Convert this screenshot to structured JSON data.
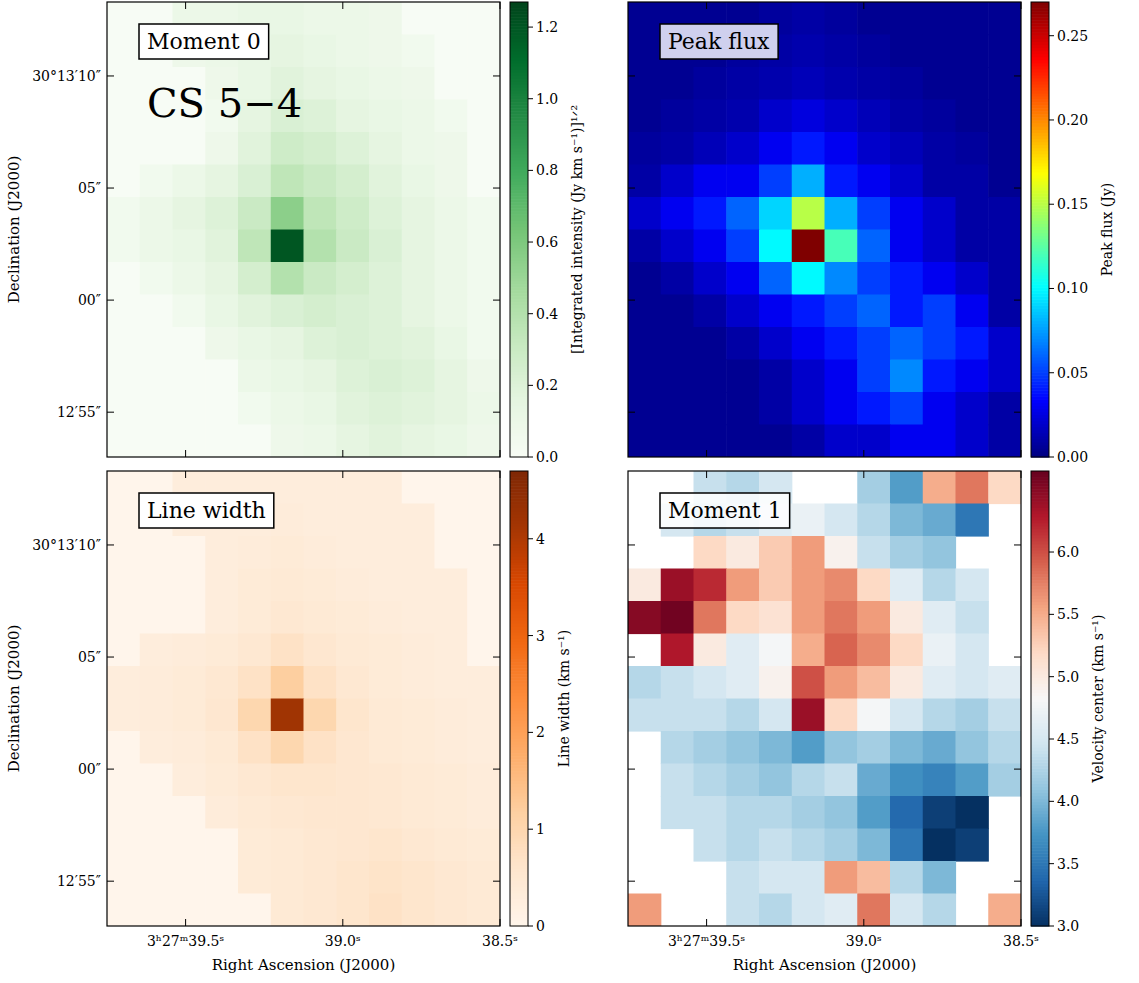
{
  "chart_data": [
    {
      "type": "heatmap",
      "title": "Moment 0",
      "annotation": "CS 5−4",
      "color": "greens",
      "ylabel": "Declination (J2000)",
      "tick_labels": "y",
      "xlim": [
        39.75,
        38.5
      ],
      "ylim": [
        -7.0,
        13.3
      ],
      "xticks": [
        39.5,
        39.0,
        38.5
      ],
      "yticks": [
        {
          "value": 10,
          "label": "30°13′10″"
        },
        {
          "value": 5,
          "label": "05″"
        },
        {
          "value": 0,
          "label": "00″"
        },
        {
          "value": -5,
          "label": "12′55″"
        }
      ],
      "colorbar_label": "[Integrated intensity (Jy km s⁻¹)]¹ᐟ²",
      "colorbar_range": [
        0,
        1.27
      ],
      "colorbar_ticks": [
        {
          "value": 0,
          "label": "0.0"
        },
        {
          "value": 0.2,
          "label": "0.2"
        },
        {
          "value": 0.4,
          "label": "0.4"
        },
        {
          "value": 0.6,
          "label": "0.6"
        },
        {
          "value": 0.8,
          "label": "0.8"
        },
        {
          "value": 1.0,
          "label": "1.0"
        },
        {
          "value": 1.2,
          "label": "1.2"
        }
      ],
      "cells": [
        [
          0,
          0,
          0.1,
          0.1,
          0.12,
          0.12,
          0.1,
          0.1,
          0.08,
          0,
          0,
          0
        ],
        [
          0,
          0,
          0.08,
          0.1,
          0.12,
          0.15,
          0.12,
          0.1,
          0.08,
          0.05,
          0,
          0
        ],
        [
          0,
          0,
          0,
          0.08,
          0.12,
          0.18,
          0.15,
          0.12,
          0.1,
          0.08,
          0,
          0
        ],
        [
          0,
          0,
          0,
          0.05,
          0.15,
          0.22,
          0.2,
          0.15,
          0.12,
          0.1,
          0.05,
          0
        ],
        [
          0,
          0,
          0,
          0.08,
          0.18,
          0.28,
          0.25,
          0.2,
          0.15,
          0.1,
          0.08,
          0
        ],
        [
          0,
          0.05,
          0.1,
          0.15,
          0.22,
          0.35,
          0.3,
          0.25,
          0.18,
          0.12,
          0.08,
          0
        ],
        [
          0.05,
          0.1,
          0.15,
          0.2,
          0.3,
          0.55,
          0.35,
          0.28,
          0.2,
          0.15,
          0.1,
          0.05
        ],
        [
          0.05,
          0.1,
          0.12,
          0.18,
          0.35,
          1.2,
          0.4,
          0.3,
          0.22,
          0.15,
          0.1,
          0.05
        ],
        [
          0,
          0.05,
          0.1,
          0.15,
          0.25,
          0.4,
          0.3,
          0.25,
          0.2,
          0.15,
          0.1,
          0.05
        ],
        [
          0,
          0,
          0.05,
          0.12,
          0.18,
          0.22,
          0.25,
          0.22,
          0.2,
          0.15,
          0.1,
          0.05
        ],
        [
          0,
          0,
          0,
          0.08,
          0.12,
          0.15,
          0.2,
          0.22,
          0.2,
          0.18,
          0.12,
          0.05
        ],
        [
          0,
          0,
          0,
          0,
          0.1,
          0.12,
          0.15,
          0.2,
          0.22,
          0.2,
          0.15,
          0.08
        ],
        [
          0,
          0,
          0,
          0,
          0.05,
          0.1,
          0.12,
          0.18,
          0.2,
          0.18,
          0.15,
          0.1
        ],
        [
          0,
          0,
          0,
          0,
          0,
          0.08,
          0.1,
          0.15,
          0.18,
          0.15,
          0.12,
          0.08
        ]
      ]
    },
    {
      "type": "heatmap",
      "title": "Peak flux",
      "color": "jet",
      "tick_labels": false,
      "xlim": [
        39.75,
        38.5
      ],
      "ylim": [
        -7.0,
        13.3
      ],
      "xticks": [
        39.5,
        39.0,
        38.5
      ],
      "yticks": [
        10,
        5,
        0,
        -5
      ],
      "colorbar_label": "Peak flux (Jy)",
      "colorbar_range": [
        0,
        0.27
      ],
      "colorbar_ticks": [
        {
          "value": 0,
          "label": "0.00"
        },
        {
          "value": 0.05,
          "label": "0.05"
        },
        {
          "value": 0.1,
          "label": "0.10"
        },
        {
          "value": 0.15,
          "label": "0.15"
        },
        {
          "value": 0.2,
          "label": "0.20"
        },
        {
          "value": 0.25,
          "label": "0.25"
        }
      ],
      "cells": [
        [
          0.005,
          0.005,
          0.005,
          0.005,
          0.008,
          0.01,
          0.008,
          0.005,
          0.005,
          0.005,
          0.005,
          0.005
        ],
        [
          0.005,
          0.005,
          0.005,
          0.008,
          0.01,
          0.012,
          0.01,
          0.008,
          0.005,
          0.005,
          0.005,
          0.005
        ],
        [
          0.005,
          0.005,
          0.008,
          0.01,
          0.012,
          0.015,
          0.012,
          0.01,
          0.008,
          0.005,
          0.005,
          0.005
        ],
        [
          0.005,
          0.008,
          0.01,
          0.012,
          0.02,
          0.025,
          0.02,
          0.015,
          0.01,
          0.008,
          0.005,
          0.005
        ],
        [
          0.008,
          0.01,
          0.015,
          0.02,
          0.03,
          0.04,
          0.03,
          0.02,
          0.015,
          0.01,
          0.008,
          0.005
        ],
        [
          0.01,
          0.02,
          0.03,
          0.03,
          0.05,
          0.08,
          0.04,
          0.03,
          0.02,
          0.01,
          0.01,
          0.005
        ],
        [
          0.02,
          0.03,
          0.04,
          0.06,
          0.09,
          0.15,
          0.08,
          0.05,
          0.03,
          0.02,
          0.01,
          0.01
        ],
        [
          0.01,
          0.02,
          0.03,
          0.05,
          0.1,
          0.27,
          0.12,
          0.06,
          0.03,
          0.02,
          0.01,
          0.01
        ],
        [
          0.005,
          0.01,
          0.02,
          0.03,
          0.06,
          0.1,
          0.07,
          0.05,
          0.04,
          0.03,
          0.02,
          0.01
        ],
        [
          0.005,
          0.005,
          0.01,
          0.02,
          0.03,
          0.04,
          0.05,
          0.06,
          0.04,
          0.05,
          0.03,
          0.01
        ],
        [
          0.005,
          0.005,
          0.005,
          0.01,
          0.02,
          0.03,
          0.04,
          0.05,
          0.06,
          0.05,
          0.04,
          0.02
        ],
        [
          0.005,
          0.005,
          0.005,
          0.005,
          0.01,
          0.02,
          0.03,
          0.05,
          0.07,
          0.04,
          0.03,
          0.02
        ],
        [
          0.005,
          0.005,
          0.005,
          0.005,
          0.01,
          0.02,
          0.03,
          0.04,
          0.05,
          0.03,
          0.02,
          0.01
        ],
        [
          0.005,
          0.005,
          0.005,
          0.005,
          0.005,
          0.01,
          0.02,
          0.02,
          0.03,
          0.03,
          0.02,
          0.01
        ]
      ]
    },
    {
      "type": "heatmap",
      "title": "Line width",
      "color": "oranges",
      "tick_labels": true,
      "xlabel": "Right Ascension (J2000)",
      "ylabel": "Declination (J2000)",
      "xlim": [
        39.75,
        38.5
      ],
      "ylim": [
        -7.0,
        13.3
      ],
      "xticks": [
        {
          "value": 39.5,
          "label": "3ʰ27ᵐ39.5ˢ"
        },
        {
          "value": 39.0,
          "label": "39.0ˢ"
        },
        {
          "value": 38.5,
          "label": "38.5ˢ"
        }
      ],
      "yticks": [
        {
          "value": 10,
          "label": "30°13′10″"
        },
        {
          "value": 5,
          "label": "05″"
        },
        {
          "value": 0,
          "label": "00″"
        },
        {
          "value": -5,
          "label": "12′55″"
        }
      ],
      "colorbar_label": "Line width (km s⁻¹)",
      "colorbar_range": [
        0,
        4.7
      ],
      "colorbar_ticks": [
        0,
        1,
        2,
        3,
        4
      ],
      "cells": [
        [
          0,
          0,
          0.3,
          0.3,
          0.3,
          0.3,
          0.3,
          0.3,
          0.3,
          0,
          0,
          0
        ],
        [
          0,
          0,
          0.3,
          0.3,
          0.3,
          0.35,
          0.3,
          0.3,
          0.3,
          0.3,
          0,
          0
        ],
        [
          0,
          0,
          0,
          0.3,
          0.35,
          0.4,
          0.35,
          0.3,
          0.3,
          0.3,
          0,
          0
        ],
        [
          0,
          0,
          0,
          0.3,
          0.4,
          0.45,
          0.4,
          0.35,
          0.3,
          0.3,
          0.3,
          0
        ],
        [
          0,
          0,
          0,
          0.3,
          0.4,
          0.5,
          0.45,
          0.4,
          0.35,
          0.3,
          0.3,
          0
        ],
        [
          0,
          0.3,
          0.35,
          0.4,
          0.5,
          0.7,
          0.55,
          0.45,
          0.4,
          0.35,
          0.3,
          0
        ],
        [
          0.3,
          0.35,
          0.4,
          0.5,
          0.7,
          1.2,
          0.7,
          0.5,
          0.4,
          0.35,
          0.3,
          0.3
        ],
        [
          0.3,
          0.35,
          0.4,
          0.55,
          1.0,
          4.2,
          1.0,
          0.6,
          0.45,
          0.4,
          0.35,
          0.3
        ],
        [
          0,
          0.3,
          0.35,
          0.45,
          0.7,
          1.0,
          0.7,
          0.55,
          0.45,
          0.4,
          0.35,
          0.3
        ],
        [
          0,
          0,
          0.3,
          0.4,
          0.5,
          0.6,
          0.6,
          0.55,
          0.5,
          0.45,
          0.4,
          0.35
        ],
        [
          0,
          0,
          0,
          0.35,
          0.45,
          0.5,
          0.55,
          0.55,
          0.5,
          0.45,
          0.4,
          0.35
        ],
        [
          0,
          0,
          0,
          0,
          0.4,
          0.45,
          0.5,
          0.55,
          0.6,
          0.5,
          0.45,
          0.4
        ],
        [
          0,
          0,
          0,
          0,
          0.4,
          0.45,
          0.5,
          0.6,
          0.65,
          0.6,
          0.5,
          0.45
        ],
        [
          0,
          0,
          0,
          0,
          0,
          0.45,
          0.5,
          0.6,
          0.7,
          0.6,
          0.5,
          0.45
        ]
      ]
    },
    {
      "type": "heatmap",
      "title": "Moment 1",
      "color": "rdbu_r",
      "tick_labels": "x",
      "xlabel": "Right Ascension (J2000)",
      "xlim": [
        39.75,
        38.5
      ],
      "ylim": [
        -7.0,
        13.3
      ],
      "xticks": [
        {
          "value": 39.5,
          "label": "3ʰ27ᵐ39.5ˢ"
        },
        {
          "value": 39.0,
          "label": "39.0ˢ"
        },
        {
          "value": 38.5,
          "label": "38.5ˢ"
        }
      ],
      "yticks": [
        10,
        5,
        0,
        -5
      ],
      "colorbar_label": "Velocity center (km s⁻¹)",
      "colorbar_range": [
        3.0,
        6.65
      ],
      "colorbar_ticks": [
        {
          "value": 3.0,
          "label": "3.0"
        },
        {
          "value": 3.5,
          "label": "3.5"
        },
        {
          "value": 4.0,
          "label": "4.0"
        },
        {
          "value": 4.5,
          "label": "4.5"
        },
        {
          "value": 5.0,
          "label": "5.0"
        },
        {
          "value": 5.5,
          "label": "5.5"
        },
        {
          "value": 6.0,
          "label": "6.0"
        }
      ],
      "cells": [
        [
          null,
          null,
          4.4,
          4.3,
          4.5,
          null,
          null,
          4.2,
          3.8,
          5.5,
          5.8,
          5.2
        ],
        [
          null,
          4.5,
          4.3,
          4.4,
          4.6,
          4.7,
          4.5,
          4.3,
          4.0,
          3.9,
          3.5,
          null
        ],
        [
          null,
          null,
          5.2,
          5.0,
          5.3,
          5.6,
          4.9,
          4.4,
          4.2,
          4.1,
          null,
          null
        ],
        [
          5.0,
          6.4,
          6.2,
          5.6,
          5.3,
          5.6,
          5.7,
          5.2,
          4.6,
          4.3,
          4.5,
          null
        ],
        [
          6.5,
          6.6,
          5.8,
          5.2,
          5.1,
          5.6,
          5.8,
          5.6,
          5.0,
          4.6,
          4.4,
          null
        ],
        [
          null,
          6.3,
          5.0,
          4.6,
          4.8,
          5.5,
          5.9,
          5.7,
          5.2,
          4.7,
          4.5,
          null
        ],
        [
          4.3,
          4.4,
          4.5,
          4.6,
          4.9,
          6.0,
          5.6,
          5.4,
          5.0,
          4.6,
          4.5,
          4.6
        ],
        [
          4.4,
          4.4,
          4.4,
          4.3,
          4.5,
          6.4,
          5.2,
          4.8,
          4.5,
          4.3,
          4.2,
          4.4
        ],
        [
          null,
          4.3,
          4.2,
          4.1,
          4.0,
          3.8,
          4.1,
          4.2,
          4.0,
          3.9,
          4.1,
          4.3
        ],
        [
          null,
          4.4,
          4.3,
          4.2,
          4.1,
          4.3,
          4.4,
          3.9,
          3.7,
          3.6,
          3.8,
          4.2
        ],
        [
          null,
          4.4,
          4.4,
          4.3,
          4.3,
          4.2,
          4.1,
          3.8,
          3.4,
          3.1,
          3.0,
          null
        ],
        [
          null,
          null,
          4.4,
          4.3,
          4.4,
          4.3,
          4.2,
          4.0,
          3.5,
          3.0,
          3.1,
          null
        ],
        [
          null,
          null,
          null,
          4.4,
          4.5,
          4.5,
          5.6,
          5.4,
          4.3,
          4.0,
          null,
          null
        ],
        [
          5.6,
          null,
          null,
          4.4,
          4.3,
          4.5,
          4.6,
          5.8,
          4.5,
          4.3,
          null,
          5.5
        ]
      ]
    }
  ]
}
